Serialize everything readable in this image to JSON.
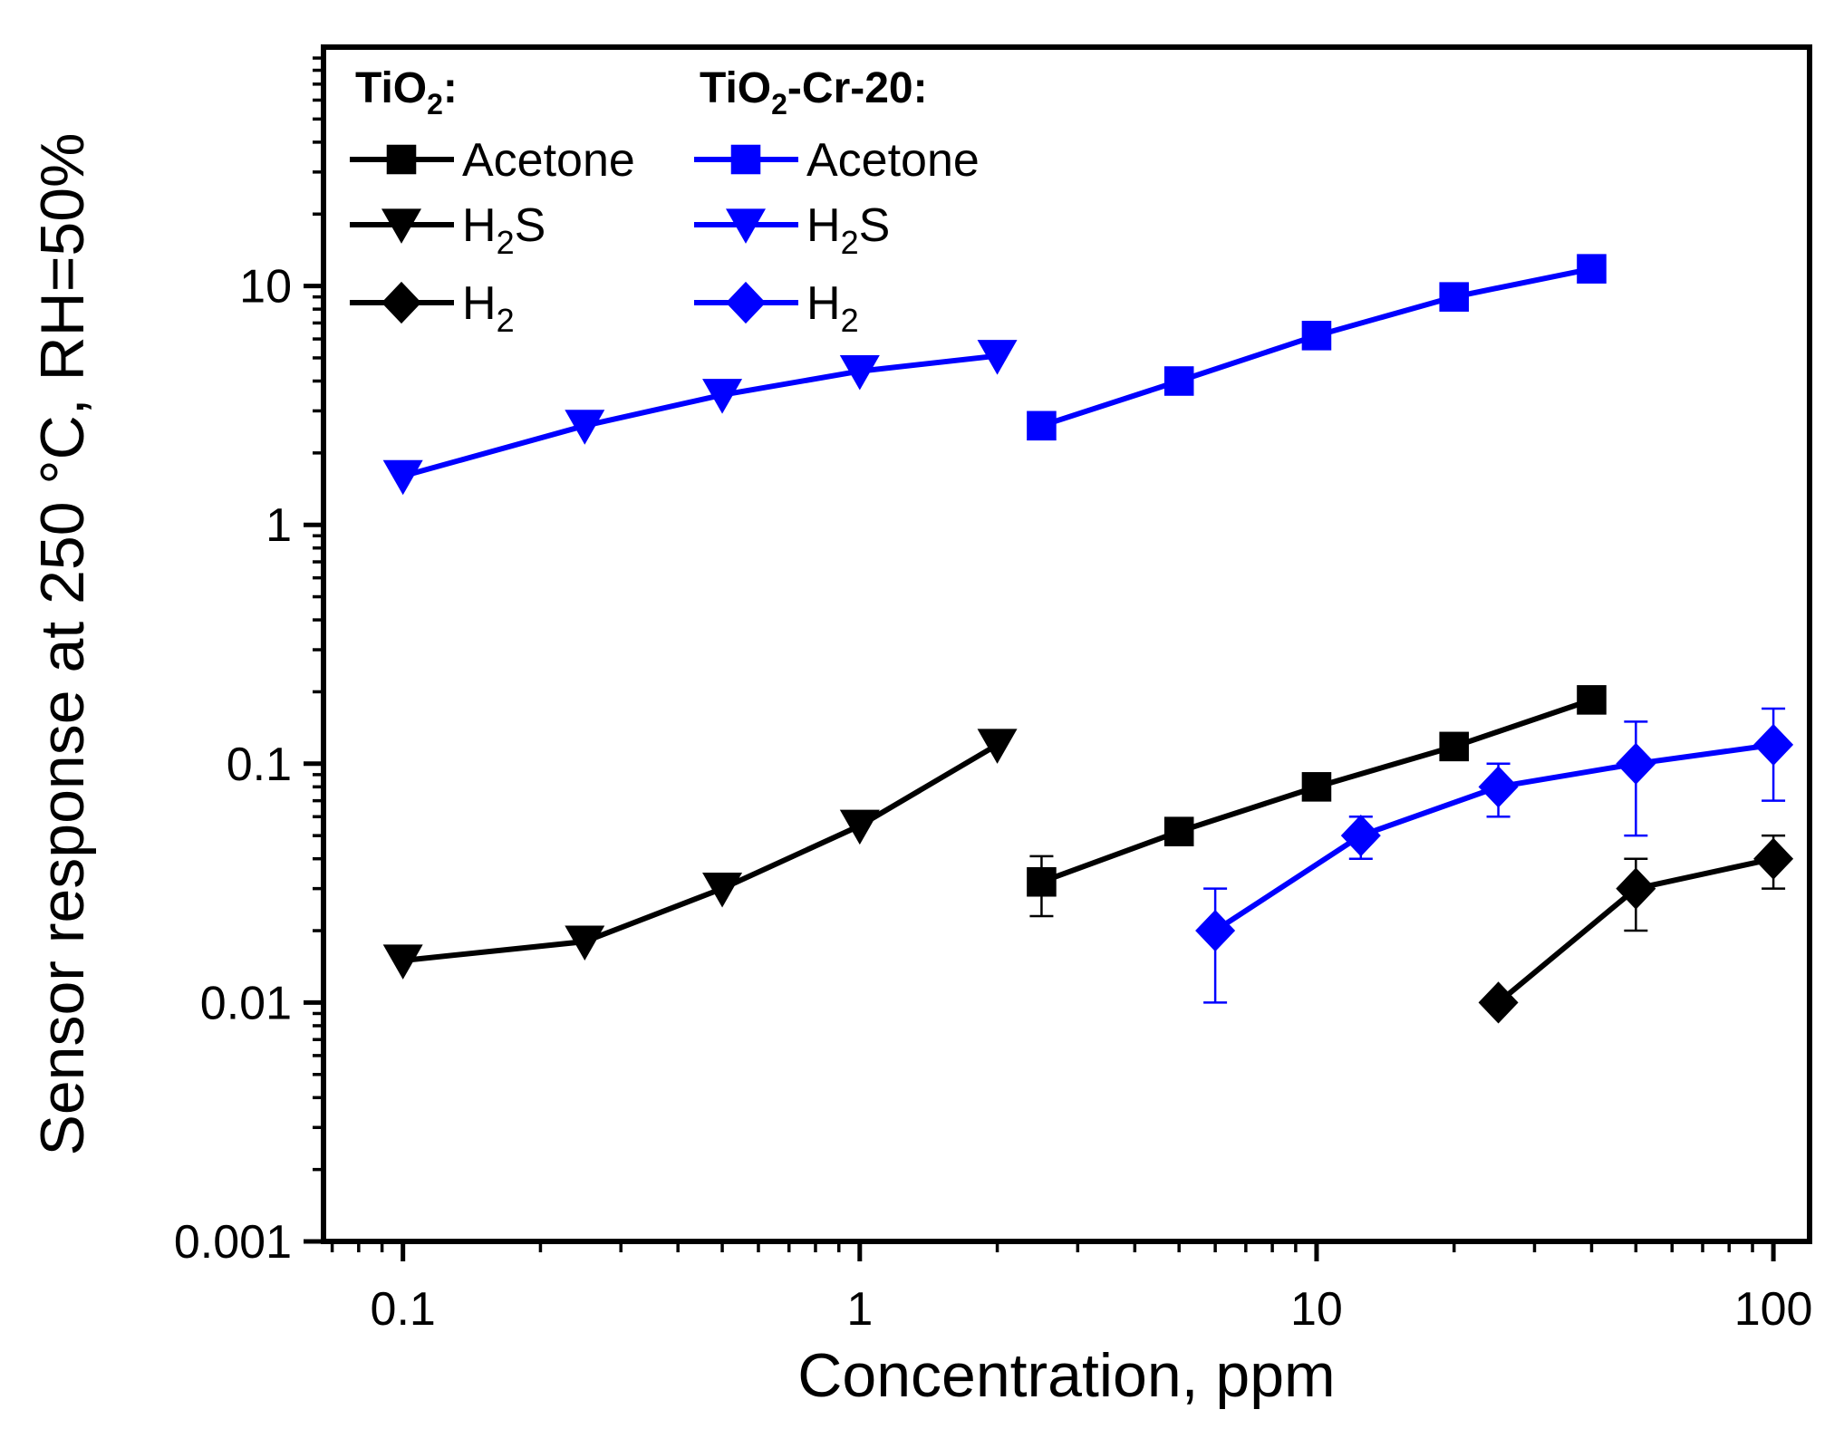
{
  "chart_data": {
    "type": "scatter",
    "xlabel": "Concentration, ppm",
    "ylabel": "Sensor response at 250 °C,  RH=50%",
    "x_scale": "log",
    "y_scale": "log",
    "xlim": [
      0.067,
      120
    ],
    "ylim": [
      0.001,
      100
    ],
    "x_ticks": [
      {
        "value": 0.1,
        "label": "0.1"
      },
      {
        "value": 1,
        "label": "1"
      },
      {
        "value": 10,
        "label": "10"
      },
      {
        "value": 100,
        "label": "100"
      }
    ],
    "y_ticks": [
      {
        "value": 0.001,
        "label": "0.001"
      },
      {
        "value": 0.01,
        "label": "0.01"
      },
      {
        "value": 0.1,
        "label": "0.1"
      },
      {
        "value": 1,
        "label": "1"
      },
      {
        "value": 10,
        "label": "10"
      }
    ],
    "grid": false,
    "legend": {
      "placement": "top-left",
      "groups": [
        {
          "heading_main": "TiO",
          "heading_sub": "2",
          "heading_tail": ":",
          "color": "#000000"
        },
        {
          "heading_main": "TiO",
          "heading_sub": "2",
          "heading_tail": "-Cr-20:",
          "color": "#0000ff"
        }
      ]
    },
    "series": [
      {
        "group": 0,
        "color": "#000000",
        "marker": "square",
        "label_main": "Acetone",
        "label_sub": "",
        "label_tail": "",
        "x": [
          2.5,
          5,
          10,
          20,
          40
        ],
        "y": [
          0.032,
          0.052,
          0.08,
          0.118,
          0.185
        ],
        "yerr": [
          0.009,
          0,
          0,
          0,
          0
        ]
      },
      {
        "group": 0,
        "color": "#000000",
        "marker": "triangle-down",
        "label_main": "H",
        "label_sub": "2",
        "label_tail": "S",
        "x": [
          0.1,
          0.25,
          0.5,
          1,
          2
        ],
        "y": [
          0.015,
          0.018,
          0.03,
          0.055,
          0.12
        ],
        "yerr": [
          0,
          0,
          0,
          0,
          0
        ]
      },
      {
        "group": 0,
        "color": "#000000",
        "marker": "diamond",
        "label_main": "H",
        "label_sub": "2",
        "label_tail": "",
        "x": [
          25,
          50,
          100
        ],
        "y": [
          0.01,
          0.03,
          0.04
        ],
        "yerr": [
          0,
          0.01,
          0.01
        ]
      },
      {
        "group": 1,
        "color": "#0000ff",
        "marker": "square",
        "label_main": "Acetone",
        "label_sub": "",
        "label_tail": "",
        "x": [
          2.5,
          5,
          10,
          20,
          40
        ],
        "y": [
          2.6,
          4.0,
          6.2,
          9.0,
          11.8
        ],
        "yerr": [
          0,
          0,
          0,
          0,
          0
        ]
      },
      {
        "group": 1,
        "color": "#0000ff",
        "marker": "triangle-down",
        "label_main": "H",
        "label_sub": "2",
        "label_tail": "S",
        "x": [
          0.1,
          0.25,
          0.5,
          1,
          2
        ],
        "y": [
          1.6,
          2.6,
          3.5,
          4.4,
          5.1
        ],
        "yerr": [
          0,
          0,
          0,
          0,
          0
        ]
      },
      {
        "group": 1,
        "color": "#0000ff",
        "marker": "diamond",
        "label_main": "H",
        "label_sub": "2",
        "label_tail": "",
        "x": [
          6,
          12.5,
          25,
          50,
          100
        ],
        "y": [
          0.02,
          0.05,
          0.08,
          0.1,
          0.12
        ],
        "yerr": [
          0.01,
          0.01,
          0.02,
          0.05,
          0.05
        ]
      }
    ]
  }
}
